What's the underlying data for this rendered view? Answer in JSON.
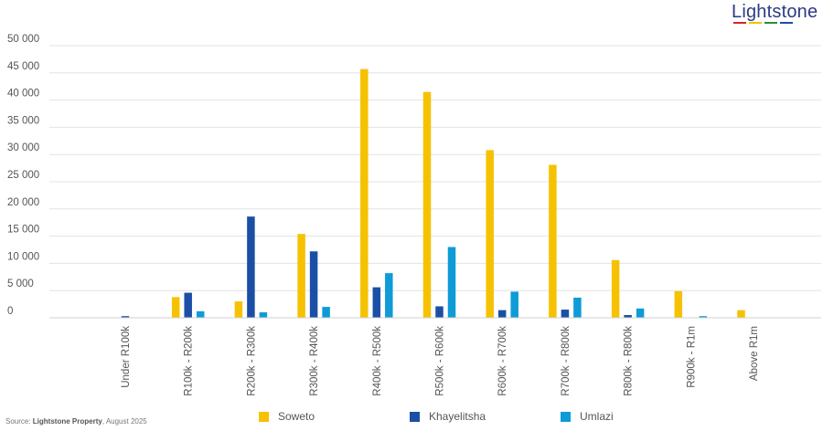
{
  "logo": {
    "text": "Lightstone",
    "stripe_colors": [
      "#d7252c",
      "#f5c000",
      "#2e8b3d",
      "#1a4ea8"
    ]
  },
  "source": {
    "prefix": "Source: ",
    "name": "Lightstone Property",
    "suffix": ", August 2025"
  },
  "chart_data": {
    "type": "bar",
    "title": "",
    "xlabel": "",
    "ylabel": "",
    "ylim": [
      0,
      50000
    ],
    "yticks": [
      0,
      5000,
      10000,
      15000,
      20000,
      25000,
      30000,
      35000,
      40000,
      45000,
      50000
    ],
    "ytick_labels": [
      "0",
      "5 000",
      "10 000",
      "15 000",
      "20 000",
      "25 000",
      "30 000",
      "35 000",
      "40 000",
      "45 000",
      "50 000"
    ],
    "grid": true,
    "legend_position": "bottom",
    "categories": [
      "Under R100k",
      "R100k - R200k",
      "R200k - R300k",
      "R300k - R400k",
      "R400k - R500k",
      "R500k - R600k",
      "R600k - R700k",
      "R700k - R800k",
      "R800k - R800k",
      "R900k - R1m",
      "Above R1m"
    ],
    "series": [
      {
        "name": "Soweto",
        "color": "#f6c200",
        "values": [
          0,
          3800,
          3000,
          15400,
          45700,
          41500,
          30800,
          28100,
          10600,
          4900,
          1400
        ]
      },
      {
        "name": "Khayelitsha",
        "color": "#1b4fa6",
        "values": [
          300,
          4600,
          18600,
          12200,
          5600,
          2100,
          1400,
          1500,
          500,
          0,
          0
        ]
      },
      {
        "name": "Umlazi",
        "color": "#0f9bd7",
        "values": [
          0,
          1200,
          1000,
          2000,
          8200,
          13000,
          4800,
          3700,
          1700,
          300,
          0
        ]
      }
    ]
  }
}
